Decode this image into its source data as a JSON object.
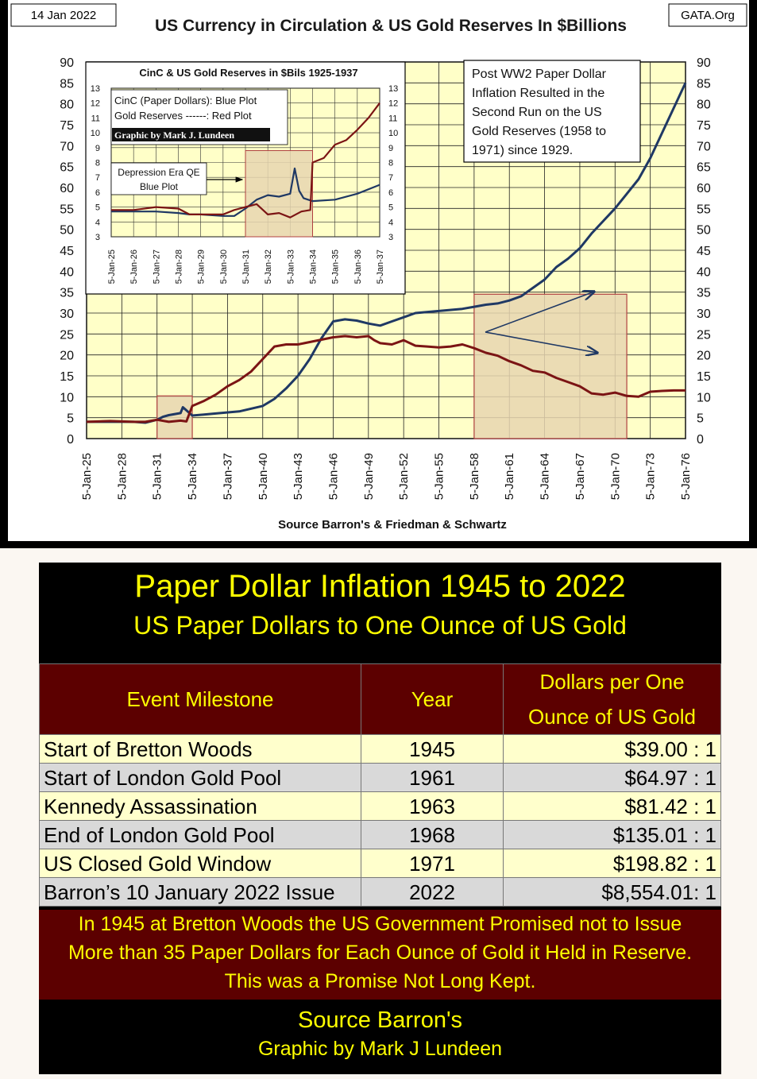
{
  "header": {
    "date": "14 Jan 2022",
    "title": "US Currency in Circulation & US Gold Reserves In $Billions",
    "site": "GATA.Org"
  },
  "colors": {
    "currency": "#1f3864",
    "gold": "#7b1414",
    "plot_bg": "#ffffc8",
    "shade": "#e8d6b0",
    "shade_border": "#b04040",
    "table_header_bg": "#5c0000",
    "table_text": "#ffff00"
  },
  "chart_data": [
    {
      "type": "line",
      "ylim": [
        0,
        90
      ],
      "xlim": [
        1925,
        1976
      ],
      "y_ticks": [
        "0",
        "5",
        "10",
        "15",
        "20",
        "25",
        "30",
        "35",
        "40",
        "45",
        "50",
        "55",
        "60",
        "65",
        "70",
        "75",
        "80",
        "85",
        "90"
      ],
      "x_tick_labels": [
        "5-Jan-25",
        "5-Jan-28",
        "5-Jan-31",
        "5-Jan-34",
        "5-Jan-37",
        "5-Jan-40",
        "5-Jan-43",
        "5-Jan-46",
        "5-Jan-49",
        "5-Jan-52",
        "5-Jan-55",
        "5-Jan-58",
        "5-Jan-61",
        "5-Jan-64",
        "5-Jan-67",
        "5-Jan-70",
        "5-Jan-73",
        "5-Jan-76"
      ],
      "xlabel": "Source Barron's & Friedman & Schwartz",
      "grid": true,
      "series": [
        {
          "color": "#1f3864",
          "x": [
            1925,
            1927,
            1929,
            1930,
            1931,
            1931.5,
            1932,
            1933,
            1933.2,
            1934,
            1936,
            1938,
            1940,
            1941,
            1942,
            1943,
            1944,
            1945,
            1946,
            1947,
            1948,
            1949,
            1950,
            1951,
            1952,
            1953,
            1955,
            1957,
            1958,
            1959,
            1960,
            1961,
            1962,
            1963,
            1964,
            1965,
            1966,
            1967,
            1968,
            1969,
            1970,
            1971,
            1972,
            1973,
            1974,
            1975,
            1976
          ],
          "y": [
            4,
            4,
            4,
            3.8,
            4.5,
            5.2,
            5.6,
            6.1,
            7.5,
            5.5,
            6,
            6.5,
            7.8,
            9.5,
            12,
            15,
            19,
            24,
            28,
            28.5,
            28.2,
            27.5,
            27,
            28,
            29,
            30,
            30.5,
            31,
            31.5,
            32,
            32.3,
            33,
            34,
            36,
            38,
            41,
            43,
            45.5,
            49,
            52,
            55,
            58.5,
            62,
            67,
            73,
            79,
            85
          ]
        },
        {
          "color": "#7b1414",
          "x": [
            1925,
            1927,
            1929,
            1930,
            1931,
            1932,
            1933,
            1933.5,
            1934,
            1935,
            1936,
            1937,
            1938,
            1939,
            1940,
            1941,
            1942,
            1943,
            1946,
            1947,
            1948,
            1949,
            1949.5,
            1950,
            1951,
            1952,
            1953,
            1954,
            1955,
            1956,
            1957,
            1958,
            1959,
            1960,
            1961,
            1962,
            1963,
            1964,
            1965,
            1966,
            1967,
            1968,
            1969,
            1970,
            1971,
            1972,
            1973,
            1974,
            1975,
            1976
          ],
          "y": [
            4,
            4.2,
            4,
            4,
            4.5,
            4,
            4.3,
            4.1,
            7.8,
            9,
            10.5,
            12.5,
            14,
            16,
            19,
            22,
            22.5,
            22.5,
            24.2,
            24.5,
            24.2,
            24.5,
            23.5,
            22.8,
            22.5,
            23.5,
            22.2,
            22,
            21.8,
            22,
            22.5,
            21.6,
            20.5,
            19.8,
            18.5,
            17.5,
            16.2,
            15.8,
            14.5,
            13.5,
            12.5,
            10.8,
            10.5,
            11,
            10.2,
            10,
            11.2,
            11.4,
            11.5,
            11.5
          ]
        }
      ],
      "shaded_regions": [
        [
          1931,
          1934
        ],
        [
          1958,
          1971
        ]
      ],
      "annotation": "Post WW2 Paper Dollar Inflation Resulted in the Second Run on the US Gold Reserves (1958 to 1971) since 1929."
    },
    {
      "type": "line",
      "title": "CinC & US Gold Reserves in $Bils 1925-1937",
      "ylim": [
        3,
        13
      ],
      "xlim": [
        1925,
        1937
      ],
      "y_ticks": [
        "3",
        "4",
        "5",
        "6",
        "7",
        "8",
        "9",
        "10",
        "11",
        "12",
        "13"
      ],
      "x_tick_labels": [
        "5-Jan-25",
        "5-Jan-26",
        "5-Jan-27",
        "5-Jan-28",
        "5-Jan-29",
        "5-Jan-30",
        "5-Jan-31",
        "5-Jan-32",
        "5-Jan-33",
        "5-Jan-34",
        "5-Jan-35",
        "5-Jan-36",
        "5-Jan-37"
      ],
      "grid": true,
      "legend": {
        "line1": "CinC (Paper Dollars):  Blue Plot",
        "line2": "Gold Reserves ------:   Red Plot",
        "credit": "Graphic by Mark J. Lundeen"
      },
      "callout": [
        "Depression Era QE",
        "Blue Plot"
      ],
      "series": [
        {
          "color": "#1f3864",
          "x": [
            1925,
            1926,
            1927,
            1928,
            1928.5,
            1929,
            1930,
            1930.5,
            1931,
            1931.5,
            1932,
            1932.5,
            1933,
            1933.2,
            1933.4,
            1933.6,
            1933.8,
            1934,
            1935,
            1936,
            1937
          ],
          "y": [
            4.7,
            4.7,
            4.7,
            4.6,
            4.5,
            4.5,
            4.4,
            4.4,
            4.9,
            5.5,
            5.8,
            5.7,
            5.9,
            7.6,
            6.1,
            5.6,
            5.5,
            5.4,
            5.5,
            5.9,
            6.5
          ]
        },
        {
          "color": "#7b1414",
          "x": [
            1925,
            1926,
            1927,
            1928,
            1928.5,
            1929,
            1930,
            1930.5,
            1931,
            1931.5,
            1932,
            1932.5,
            1933,
            1933.5,
            1933.9,
            1934,
            1934.5,
            1935,
            1935.5,
            1936,
            1936.5,
            1937
          ],
          "y": [
            4.8,
            4.8,
            5.0,
            4.9,
            4.5,
            4.5,
            4.5,
            4.8,
            5.0,
            5.2,
            4.5,
            4.6,
            4.3,
            4.7,
            4.8,
            8.0,
            8.3,
            9.2,
            9.5,
            10.2,
            11.0,
            12.0
          ]
        }
      ],
      "shaded_regions": [
        [
          1931,
          1934
        ]
      ]
    }
  ],
  "table": {
    "title": "Paper Dollar Inflation 1945 to 2022",
    "subtitle": "US Paper Dollars to One Ounce of US Gold",
    "headers": {
      "event": "Event Milestone",
      "year": "Year",
      "dollars_line1": "Dollars per One",
      "dollars_line2": "Ounce of US Gold"
    },
    "rows": [
      {
        "event": "Start of Bretton Woods",
        "year": "1945",
        "ratio": "$39.00 : 1"
      },
      {
        "event": "Start of London Gold Pool",
        "year": "1961",
        "ratio": "$64.97 : 1"
      },
      {
        "event": "Kennedy Assassination",
        "year": "1963",
        "ratio": "$81.42 : 1"
      },
      {
        "event": "End of London Gold Pool",
        "year": "1968",
        "ratio": "$135.01 : 1"
      },
      {
        "event": "US Closed Gold Window",
        "year": "1971",
        "ratio": "$198.82 : 1"
      },
      {
        "event": "Barron’s 10 January 2022 Issue",
        "year": "2022",
        "ratio": "$8,554.01: 1"
      }
    ],
    "note": [
      "In 1945 at Bretton Woods the US Government Promised not to Issue",
      "More than 35 Paper Dollars for Each Ounce of Gold it Held in Reserve.",
      "This was a Promise Not Long Kept."
    ],
    "source": "Source Barron's",
    "credit": "Graphic by Mark J Lundeen"
  }
}
